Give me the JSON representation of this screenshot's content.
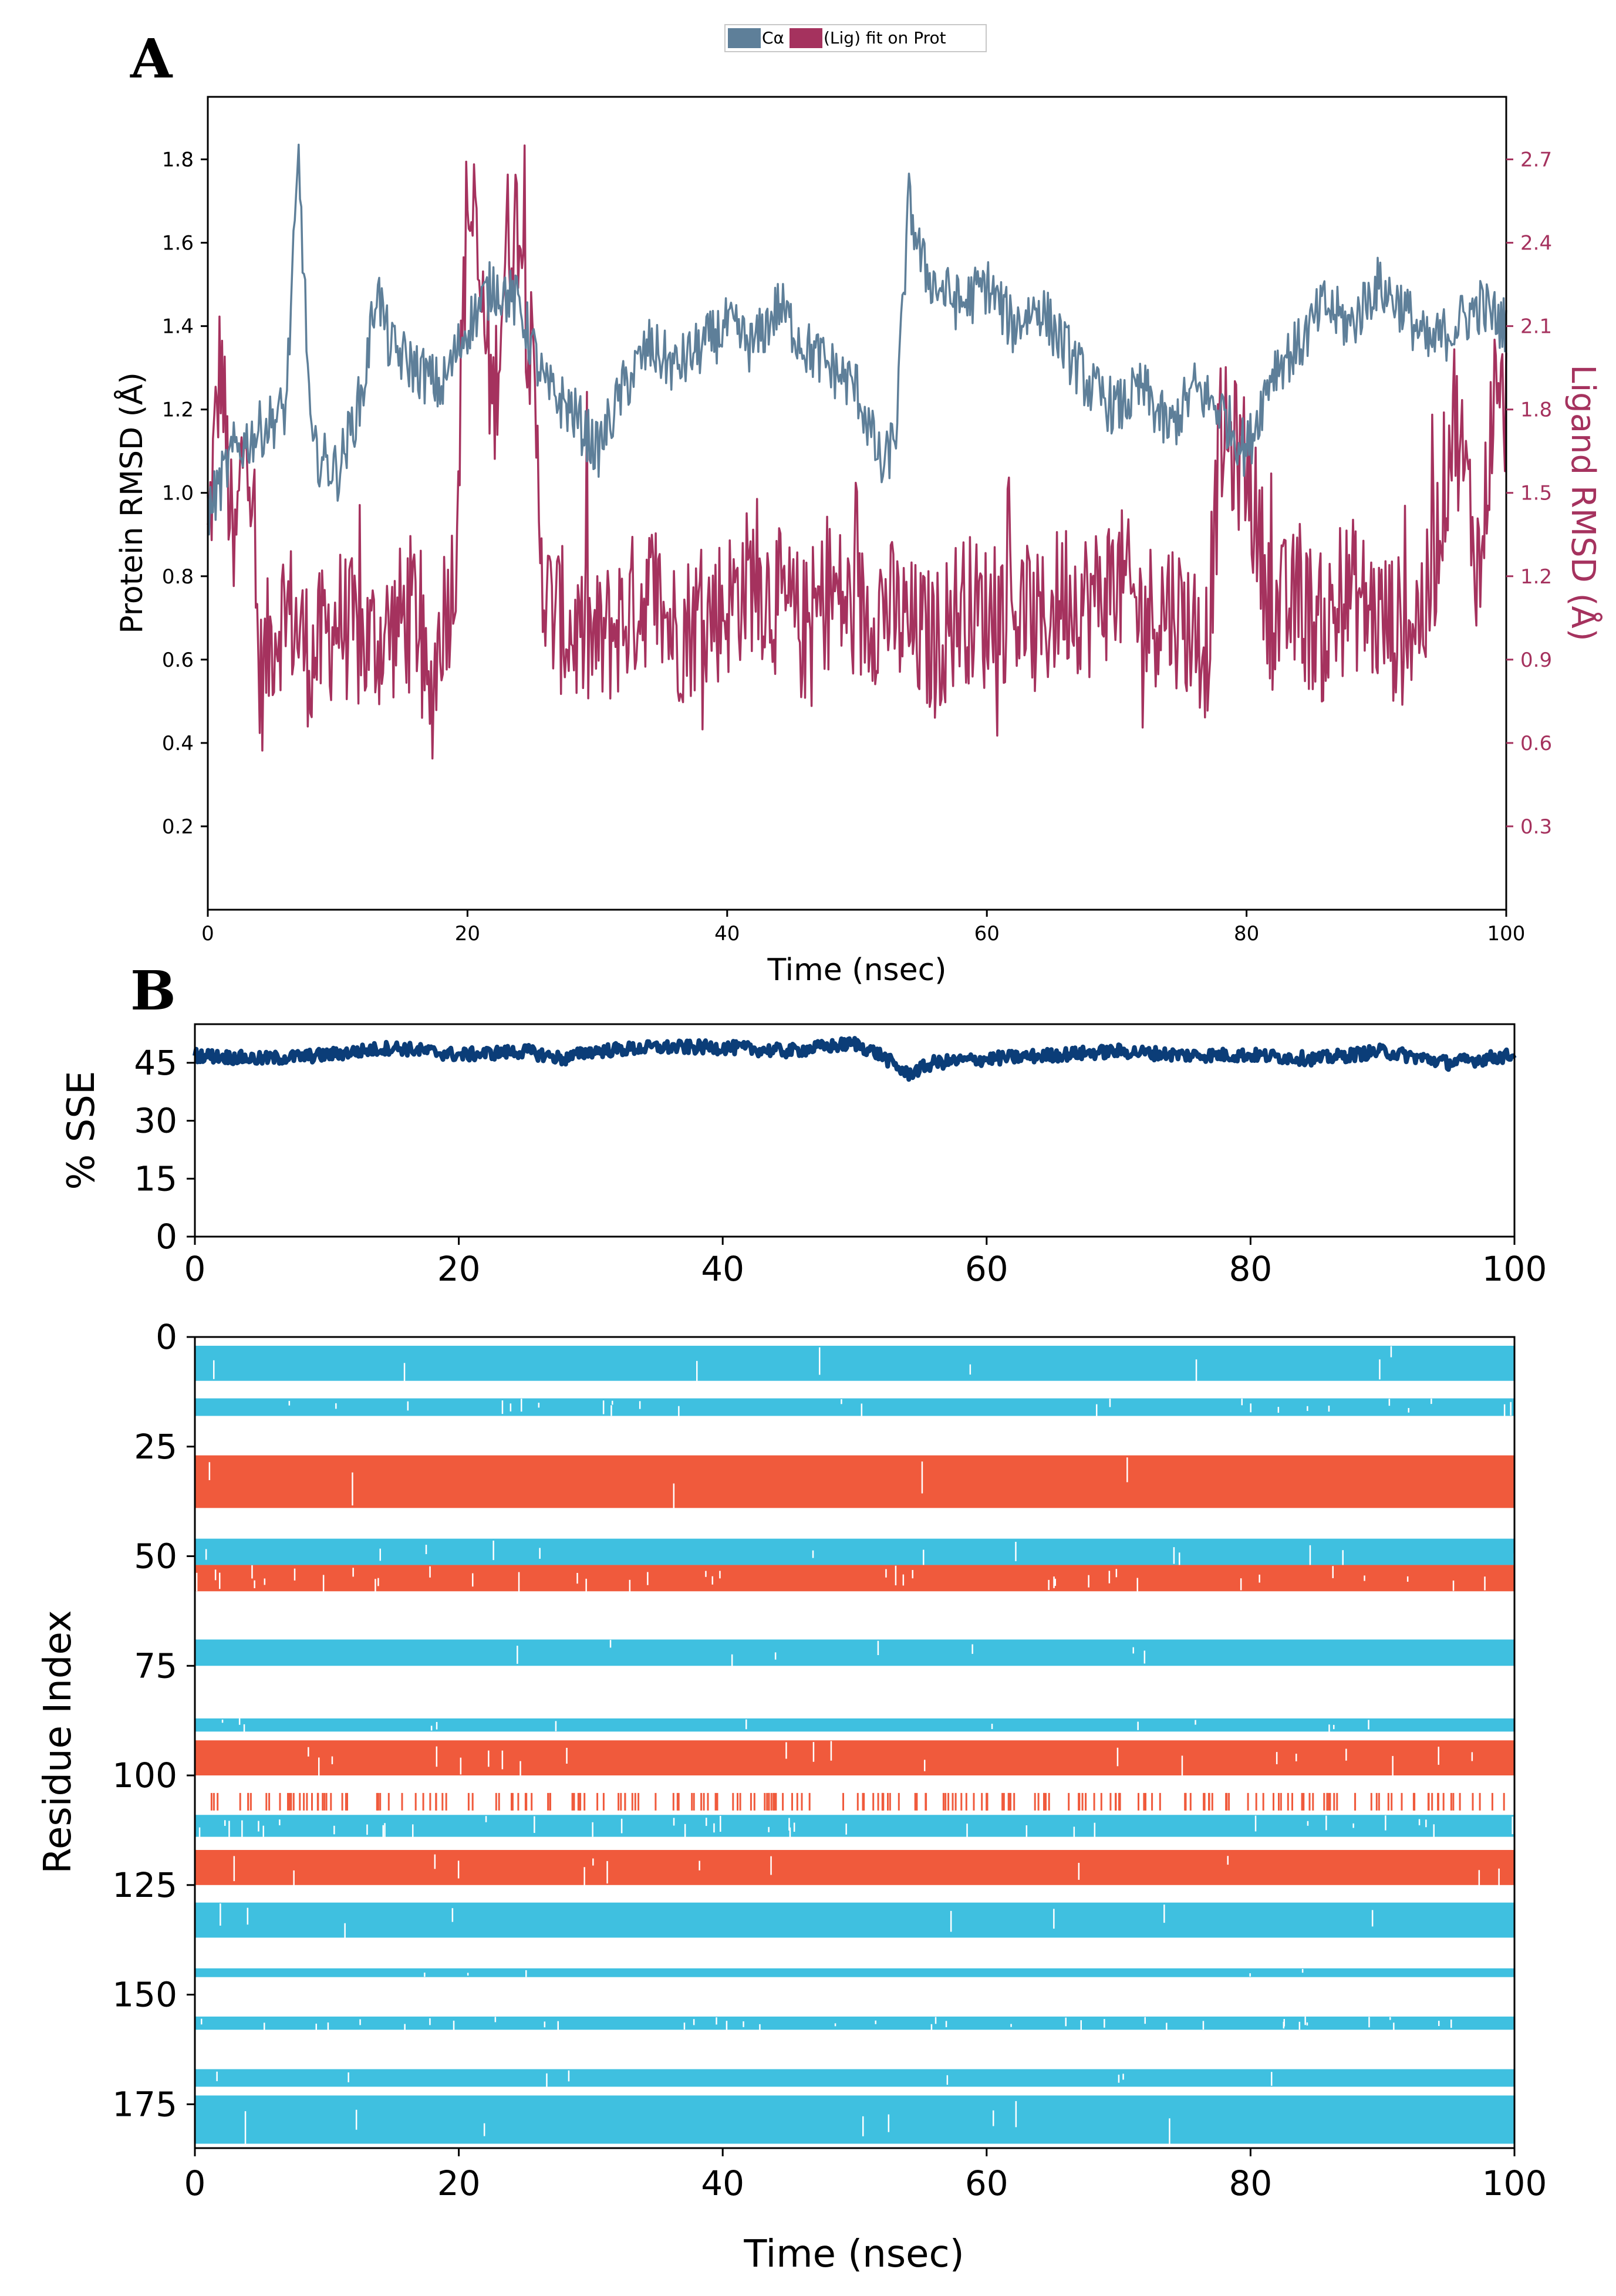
{
  "panel_labels": {
    "a": "A",
    "b": "B"
  },
  "colors": {
    "protein": "#5e7f99",
    "ligand": "#a5325e",
    "sse": "#0b3d78",
    "strand": "#3fc0e0",
    "helix": "#f05a3c",
    "axis": "#000000"
  },
  "chart_data": [
    {
      "id": "rmsd",
      "type": "line",
      "title": "",
      "legend": {
        "position": "top-center",
        "entries": [
          "Cα",
          "(Lig) fit on Prot"
        ]
      },
      "xlabel": "Time (nsec)",
      "ylabel_left": "Protein RMSD (Å)",
      "ylabel_right": "Ligand RMSD (Å)",
      "xlim": [
        0,
        100
      ],
      "ylim_left": [
        0.0,
        1.95
      ],
      "ylim_right": [
        0.0,
        2.925
      ],
      "x_ticks": [
        "0",
        "20",
        "40",
        "60",
        "80",
        "100"
      ],
      "y_ticks_left": [
        "0.2",
        "0.4",
        "0.6",
        "0.8",
        "1.0",
        "1.2",
        "1.4",
        "1.6",
        "1.8"
      ],
      "y_ticks_right": [
        "0.3",
        "0.6",
        "0.9",
        "1.2",
        "1.5",
        "1.8",
        "2.1",
        "2.4",
        "2.7"
      ],
      "series": [
        {
          "name": "Cα",
          "axis": "left",
          "x": [
            0,
            2,
            4,
            6,
            7,
            8,
            10,
            12,
            13,
            14,
            16,
            18,
            20,
            22,
            24,
            26,
            28,
            30,
            32,
            34,
            36,
            38,
            40,
            42,
            44,
            46,
            48,
            50,
            51,
            52,
            53,
            54,
            55,
            56,
            58,
            60,
            62,
            64,
            66,
            68,
            70,
            72,
            74,
            76,
            78,
            80,
            82,
            84,
            86,
            88,
            90,
            92,
            94,
            96,
            98,
            100
          ],
          "values": [
            0.95,
            1.1,
            1.15,
            1.2,
            1.8,
            1.1,
            1.05,
            1.25,
            1.5,
            1.35,
            1.3,
            1.25,
            1.4,
            1.5,
            1.45,
            1.25,
            1.2,
            1.1,
            1.25,
            1.35,
            1.3,
            1.35,
            1.4,
            1.35,
            1.45,
            1.35,
            1.3,
            1.25,
            1.15,
            1.05,
            1.15,
            1.7,
            1.55,
            1.5,
            1.45,
            1.5,
            1.4,
            1.45,
            1.35,
            1.25,
            1.2,
            1.25,
            1.15,
            1.25,
            1.2,
            1.1,
            1.3,
            1.35,
            1.45,
            1.4,
            1.5,
            1.45,
            1.35,
            1.4,
            1.45,
            1.4
          ]
        },
        {
          "name": "(Lig) fit on Prot",
          "axis": "right",
          "x": [
            0,
            1,
            2,
            3,
            4,
            5,
            6,
            8,
            10,
            12,
            14,
            16,
            17,
            18,
            19,
            20,
            21,
            22,
            23,
            24,
            25,
            26,
            28,
            30,
            32,
            34,
            36,
            38,
            40,
            42,
            44,
            46,
            48,
            50,
            52,
            54,
            56,
            58,
            60,
            62,
            64,
            66,
            68,
            70,
            72,
            74,
            76,
            77,
            78,
            80,
            82,
            84,
            86,
            88,
            90,
            92,
            94,
            96,
            98,
            99,
            100
          ],
          "values": [
            1.3,
            2.0,
            1.2,
            1.85,
            0.8,
            1.0,
            1.1,
            0.9,
            1.05,
            0.95,
            1.0,
            1.1,
            0.7,
            1.05,
            1.2,
            2.6,
            2.2,
            1.8,
            2.4,
            2.5,
            1.9,
            1.1,
            1.0,
            0.95,
            1.05,
            1.15,
            1.0,
            1.05,
            1.1,
            1.2,
            1.1,
            1.0,
            1.15,
            1.05,
            1.1,
            1.0,
            0.95,
            1.1,
            1.05,
            1.1,
            1.0,
            1.15,
            1.1,
            1.2,
            1.05,
            1.1,
            1.0,
            0.95,
            1.7,
            1.6,
            1.05,
            1.1,
            1.0,
            1.15,
            1.05,
            1.0,
            1.1,
            1.8,
            1.2,
            1.85,
            1.8
          ]
        }
      ]
    },
    {
      "id": "sse_percent",
      "type": "line",
      "xlabel": "",
      "ylabel": "% SSE",
      "xlim": [
        0,
        100
      ],
      "ylim": [
        0,
        55
      ],
      "x_ticks": [
        "0",
        "20",
        "40",
        "60",
        "80",
        "100"
      ],
      "y_ticks": [
        "0",
        "15",
        "30",
        "45"
      ],
      "series": [
        {
          "name": "% SSE",
          "x": [
            0,
            5,
            10,
            15,
            20,
            25,
            28,
            30,
            35,
            40,
            45,
            50,
            52,
            54,
            56,
            60,
            65,
            70,
            75,
            80,
            85,
            90,
            95,
            100
          ],
          "values": [
            47,
            46,
            47,
            49,
            47,
            48,
            46,
            48,
            49,
            49,
            48,
            50,
            47,
            42,
            45,
            46,
            47,
            48,
            47,
            47,
            46,
            48,
            45,
            47
          ]
        }
      ]
    },
    {
      "id": "sse_timeline",
      "type": "heatmap",
      "xlabel": "Time (nsec)",
      "ylabel": "Residue Index",
      "xlim": [
        0,
        100
      ],
      "ylim": [
        0,
        185
      ],
      "y_inverted": true,
      "x_ticks": [
        "0",
        "20",
        "40",
        "60",
        "80",
        "100"
      ],
      "y_ticks": [
        "0",
        "25",
        "50",
        "75",
        "100",
        "125",
        "150",
        "175"
      ],
      "legend_note": "cyan = strand, orange = helix",
      "bands": [
        {
          "type": "strand",
          "start": 2,
          "end": 10,
          "density": 0.97
        },
        {
          "type": "strand",
          "start": 14,
          "end": 18,
          "density": 0.9
        },
        {
          "type": "helix",
          "start": 27,
          "end": 39,
          "density": 0.98
        },
        {
          "type": "strand",
          "start": 46,
          "end": 52,
          "density": 0.95
        },
        {
          "type": "helix",
          "start": 52,
          "end": 58,
          "density": 0.85
        },
        {
          "type": "strand",
          "start": 69,
          "end": 75,
          "density": 0.97
        },
        {
          "type": "strand",
          "start": 87,
          "end": 90,
          "density": 0.95
        },
        {
          "type": "helix",
          "start": 92,
          "end": 100,
          "density": 0.92
        },
        {
          "type": "helix",
          "start": 104,
          "end": 108,
          "density": 0.35
        },
        {
          "type": "strand",
          "start": 109,
          "end": 114,
          "density": 0.85
        },
        {
          "type": "helix",
          "start": 117,
          "end": 125,
          "density": 0.95
        },
        {
          "type": "strand",
          "start": 129,
          "end": 137,
          "density": 0.97
        },
        {
          "type": "strand",
          "start": 144,
          "end": 146,
          "density": 0.98
        },
        {
          "type": "strand",
          "start": 155,
          "end": 158,
          "density": 0.85
        },
        {
          "type": "strand",
          "start": 167,
          "end": 171,
          "density": 0.97
        },
        {
          "type": "strand",
          "start": 173,
          "end": 184,
          "density": 0.97
        }
      ]
    }
  ]
}
